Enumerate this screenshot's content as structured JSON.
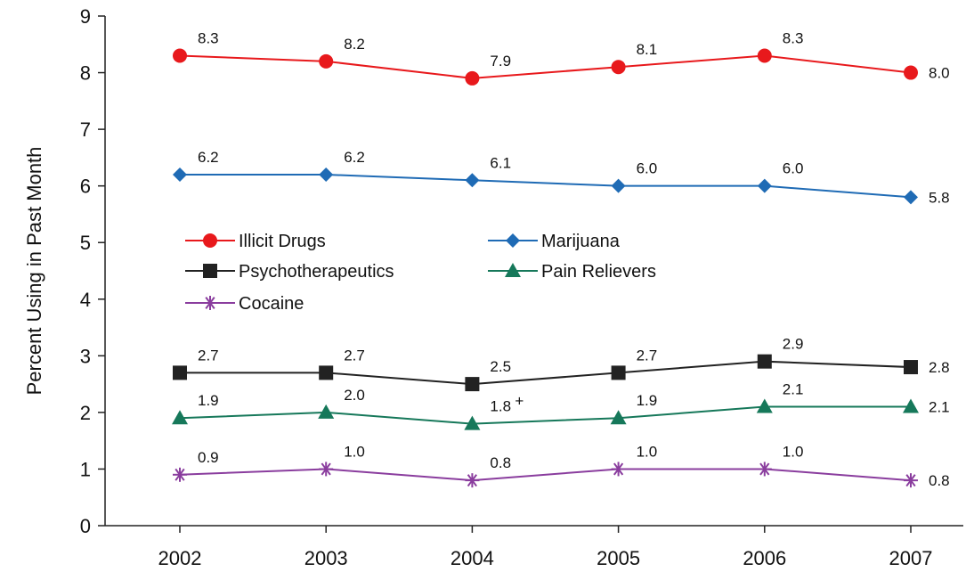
{
  "chart_data": {
    "type": "line",
    "title": "",
    "xlabel": "",
    "ylabel": "Percent Using in Past Month",
    "ylim": [
      0,
      9
    ],
    "yticks": [
      "0",
      "1",
      "2",
      "3",
      "4",
      "5",
      "6",
      "7",
      "8",
      "9"
    ],
    "categories": [
      "2002",
      "2003",
      "2004",
      "2005",
      "2006",
      "2007"
    ],
    "grid": false,
    "legend_position": "center-left",
    "series": [
      {
        "name": "Illicit Drugs",
        "color": "#e8191c",
        "marker": "circle",
        "values": [
          8.3,
          8.2,
          7.9,
          8.1,
          8.3,
          8.0
        ],
        "labels": [
          "8.3",
          "8.2",
          "7.9",
          "8.1",
          "8.3",
          "8.0"
        ]
      },
      {
        "name": "Marijuana",
        "color": "#1f6bb5",
        "marker": "diamond",
        "values": [
          6.2,
          6.2,
          6.1,
          6.0,
          6.0,
          5.8
        ],
        "labels": [
          "6.2",
          "6.2",
          "6.1",
          "6.0",
          "6.0",
          "5.8"
        ]
      },
      {
        "name": "Psychotherapeutics",
        "color": "#222222",
        "marker": "square",
        "values": [
          2.7,
          2.7,
          2.5,
          2.7,
          2.9,
          2.8
        ],
        "labels": [
          "2.7",
          "2.7",
          "2.5",
          "2.7",
          "2.9",
          "2.8"
        ]
      },
      {
        "name": "Pain Relievers",
        "color": "#16785a",
        "marker": "triangle",
        "values": [
          1.9,
          2.0,
          1.8,
          1.9,
          2.1,
          2.1
        ],
        "labels": [
          "1.9",
          "2.0",
          "1.8",
          "1.9",
          "2.1",
          "2.1"
        ],
        "label_notes": [
          "",
          "",
          "+",
          "",
          "",
          ""
        ]
      },
      {
        "name": "Cocaine",
        "color": "#8a3d9e",
        "marker": "asterisk",
        "values": [
          0.9,
          1.0,
          0.8,
          1.0,
          1.0,
          0.8
        ],
        "labels": [
          "0.9",
          "1.0",
          "0.8",
          "1.0",
          "1.0",
          "0.8"
        ]
      }
    ]
  }
}
